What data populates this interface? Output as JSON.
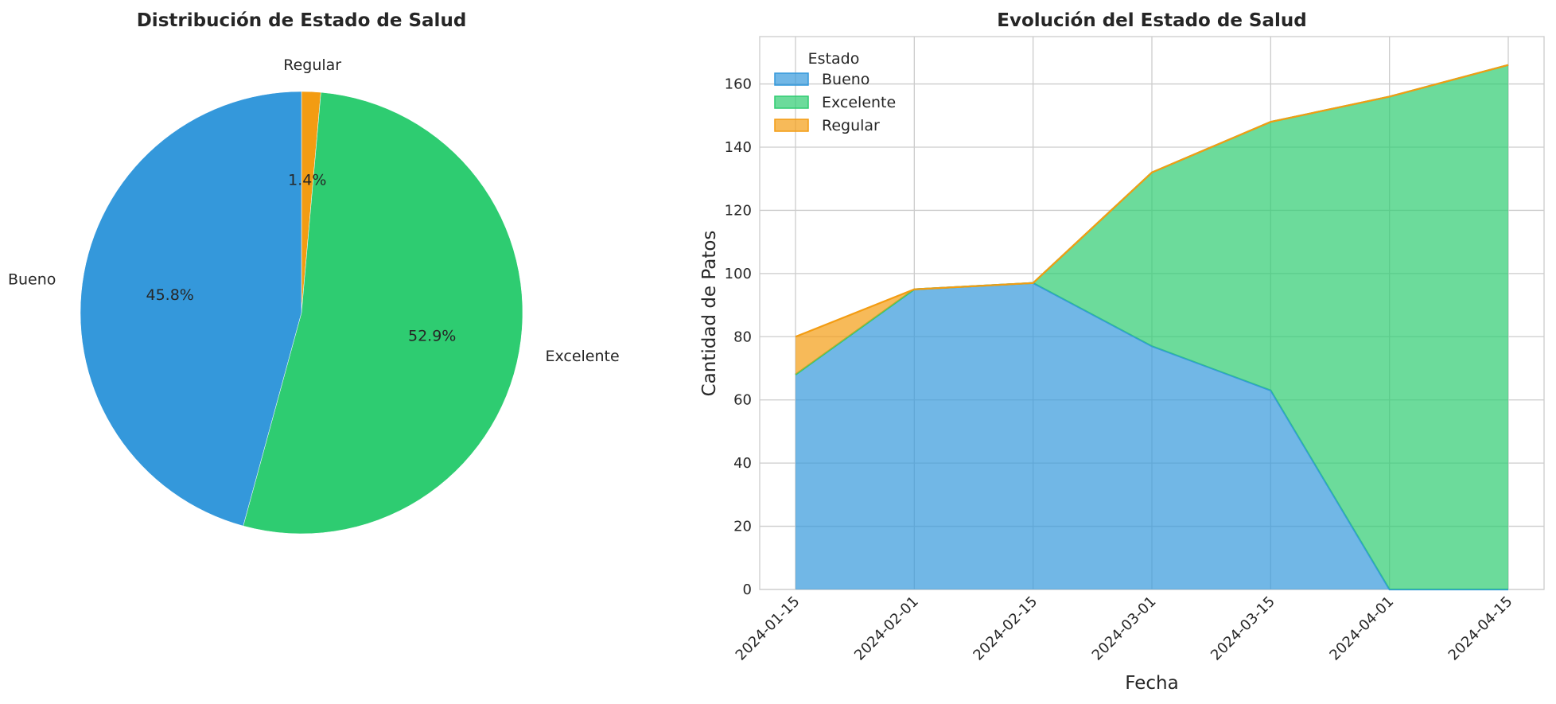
{
  "colors": {
    "Bueno": "#3498db",
    "Excelente": "#2ecc71",
    "Regular": "#f39c12"
  },
  "chart_data": [
    {
      "type": "pie",
      "title": "Distribución de Estado de Salud",
      "labels": [
        "Regular",
        "Excelente",
        "Bueno"
      ],
      "values": [
        1.4,
        52.9,
        45.8
      ],
      "pct_labels": [
        "1.4%",
        "52.9%",
        "45.8%"
      ]
    },
    {
      "type": "area",
      "title": "Evolución del Estado de Salud",
      "xlabel": "Fecha",
      "ylabel": "Cantidad de Patos",
      "x": [
        "2024-01-15",
        "2024-02-01",
        "2024-02-15",
        "2024-03-01",
        "2024-03-15",
        "2024-04-01",
        "2024-04-15"
      ],
      "ylim": [
        0,
        175
      ],
      "yticks": [
        0,
        20,
        40,
        60,
        80,
        100,
        120,
        140,
        160
      ],
      "legend_title": "Estado",
      "series": [
        {
          "name": "Bueno",
          "values": [
            68,
            95,
            97,
            77,
            63,
            0,
            0
          ]
        },
        {
          "name": "Excelente",
          "values": [
            0,
            0,
            0,
            55,
            85,
            156,
            166
          ]
        },
        {
          "name": "Regular",
          "values": [
            12,
            0,
            0,
            0,
            0,
            0,
            0
          ]
        }
      ]
    }
  ]
}
